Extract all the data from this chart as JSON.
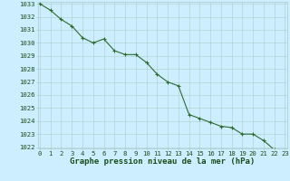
{
  "x": [
    0,
    1,
    2,
    3,
    4,
    5,
    6,
    7,
    8,
    9,
    10,
    11,
    12,
    13,
    14,
    15,
    16,
    17,
    18,
    19,
    20,
    21,
    22,
    23
  ],
  "y": [
    1033.0,
    1032.5,
    1031.8,
    1031.3,
    1030.4,
    1030.0,
    1030.3,
    1029.4,
    1029.1,
    1029.1,
    1028.5,
    1027.6,
    1027.0,
    1026.7,
    1024.5,
    1024.2,
    1023.9,
    1023.6,
    1023.5,
    1023.0,
    1023.0,
    1022.5,
    1021.8,
    1021.5
  ],
  "ylim_min": 1022,
  "ylim_max": 1033,
  "xlim_min": 0,
  "xlim_max": 23,
  "yticks": [
    1022,
    1023,
    1024,
    1025,
    1026,
    1027,
    1028,
    1029,
    1030,
    1031,
    1032,
    1033
  ],
  "xticks": [
    0,
    1,
    2,
    3,
    4,
    5,
    6,
    7,
    8,
    9,
    10,
    11,
    12,
    13,
    14,
    15,
    16,
    17,
    18,
    19,
    20,
    21,
    22,
    23
  ],
  "xlabel": "Graphe pression niveau de la mer (hPa)",
  "line_color": "#2d6a2d",
  "marker": "+",
  "background_color": "#cceeff",
  "grid_color": "#aacccc",
  "text_color": "#1a4d1a",
  "tick_label_fontsize": 5.2,
  "xlabel_fontsize": 6.5,
  "line_width": 0.8,
  "marker_size": 3.5,
  "marker_edge_width": 0.8
}
